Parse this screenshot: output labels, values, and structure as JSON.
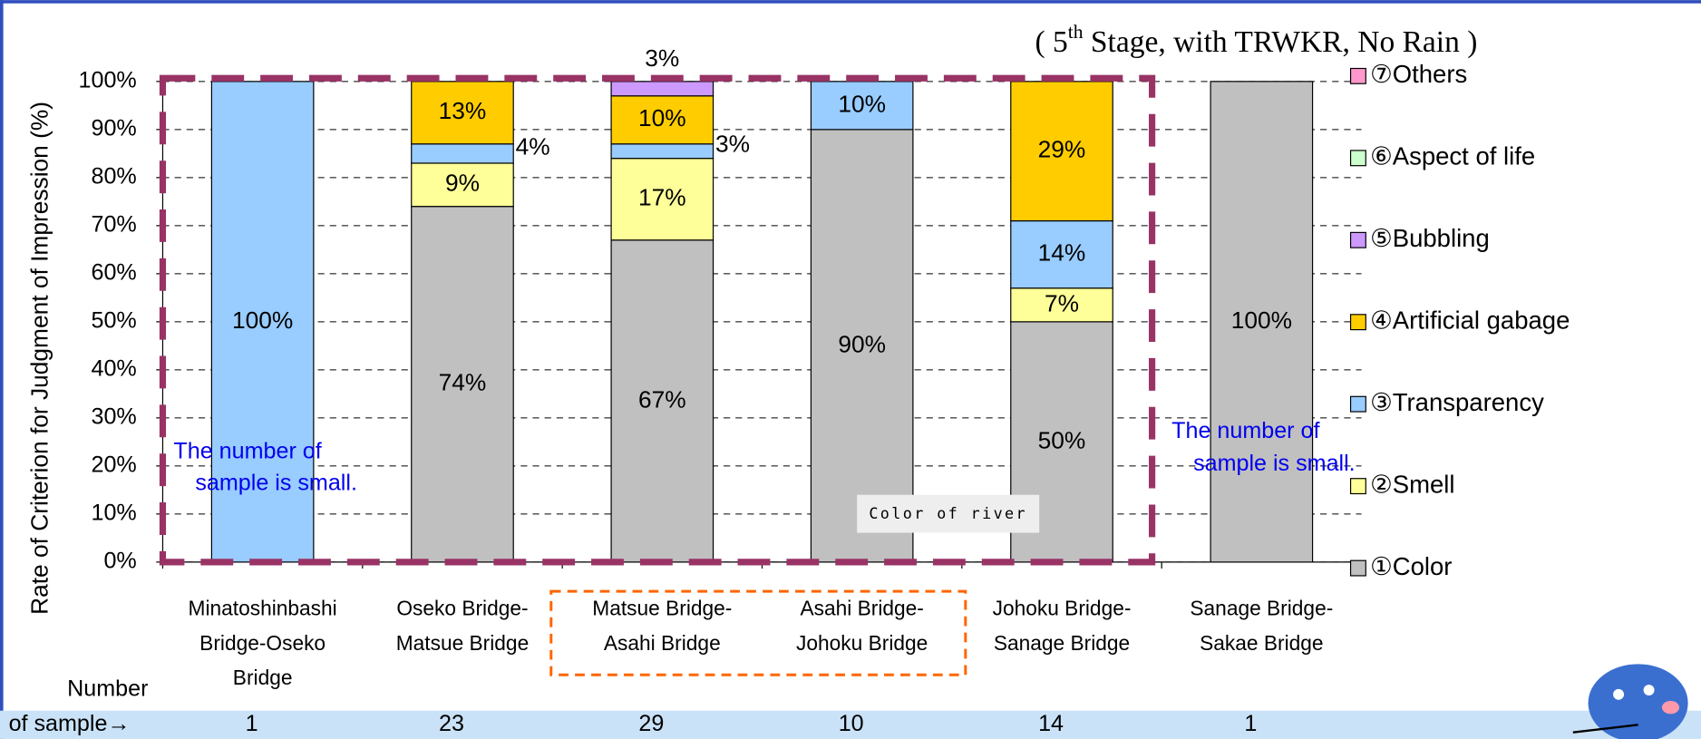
{
  "chart_data": {
    "type": "stacked_bar",
    "title_parts": [
      "( 5",
      "th",
      " Stage, with TRWKR, No Rain )"
    ],
    "y_label": "Rate of Criterion for Judgment of Impression (%)",
    "categories": [
      [
        "Minatoshinbashi",
        "Bridge-Oseko",
        "Bridge"
      ],
      [
        "Oseko Bridge-",
        "Matsue Bridge"
      ],
      [
        "Matsue Bridge-",
        "Asahi Bridge"
      ],
      [
        "Asahi Bridge-",
        "Johoku Bridge"
      ],
      [
        "Johoku Bridge-",
        "Sanage Bridge"
      ],
      [
        "Sanage Bridge-",
        "Sakae Bridge"
      ]
    ],
    "series": [
      {
        "name": "①Color",
        "color": "#c0c0c0",
        "values": [
          0,
          74,
          67,
          90,
          50,
          100
        ],
        "value_labels": [
          null,
          "74%",
          "67%",
          "90%",
          "50%",
          "100%"
        ]
      },
      {
        "name": "②Smell",
        "color": "#ffff99",
        "values": [
          0,
          9,
          17,
          0,
          7,
          0
        ],
        "value_labels": [
          null,
          "9%",
          "17%",
          null,
          "7%",
          null
        ]
      },
      {
        "name": "③Transparency",
        "color": "#99ccff",
        "values": [
          100,
          4,
          3,
          10,
          14,
          0
        ],
        "value_labels": [
          "100%",
          "4%",
          "3%",
          "10%",
          "14%",
          null
        ]
      },
      {
        "name": "④Artificial gabage",
        "color": "#ffcc00",
        "values": [
          0,
          13,
          10,
          0,
          29,
          0
        ],
        "value_labels": [
          null,
          "13%",
          "10%",
          null,
          "29%",
          null
        ]
      },
      {
        "name": "⑤Bubbling",
        "color": "#cc99ff",
        "values": [
          0,
          0,
          3,
          0,
          0,
          0
        ],
        "value_labels": [
          null,
          null,
          "3%",
          null,
          null,
          null
        ]
      },
      {
        "name": "⑥Aspect of life",
        "color": "#ccffcc",
        "values": [
          0,
          0,
          0,
          0,
          0,
          0
        ],
        "value_labels": [
          null,
          null,
          null,
          null,
          null,
          null
        ]
      },
      {
        "name": "⑦Others",
        "color": "#ff99cc",
        "values": [
          0,
          0,
          0,
          0,
          0,
          0
        ],
        "value_labels": [
          null,
          null,
          null,
          null,
          null,
          null
        ]
      }
    ],
    "ylim": [
      0,
      100
    ],
    "yticks": [
      {
        "value": 0,
        "label": "0%"
      },
      {
        "value": 10,
        "label": "10%"
      },
      {
        "value": 20,
        "label": "20%"
      },
      {
        "value": 30,
        "label": "30%"
      },
      {
        "value": 40,
        "label": "40%"
      },
      {
        "value": 50,
        "label": "50%"
      },
      {
        "value": 60,
        "label": "60%"
      },
      {
        "value": 70,
        "label": "70%"
      },
      {
        "value": 80,
        "label": "80%"
      },
      {
        "value": 90,
        "label": "90%"
      },
      {
        "value": 100,
        "label": "100%"
      }
    ],
    "grid": true,
    "legend": "right",
    "annotations": [
      [
        "The number of",
        "sample is small."
      ],
      [
        "The number of",
        "sample is small."
      ]
    ],
    "box_label": "Color of river",
    "sample_row_label": [
      "Number",
      "of sample→"
    ],
    "sample_counts": [
      1,
      23,
      29,
      10,
      14,
      1
    ]
  }
}
